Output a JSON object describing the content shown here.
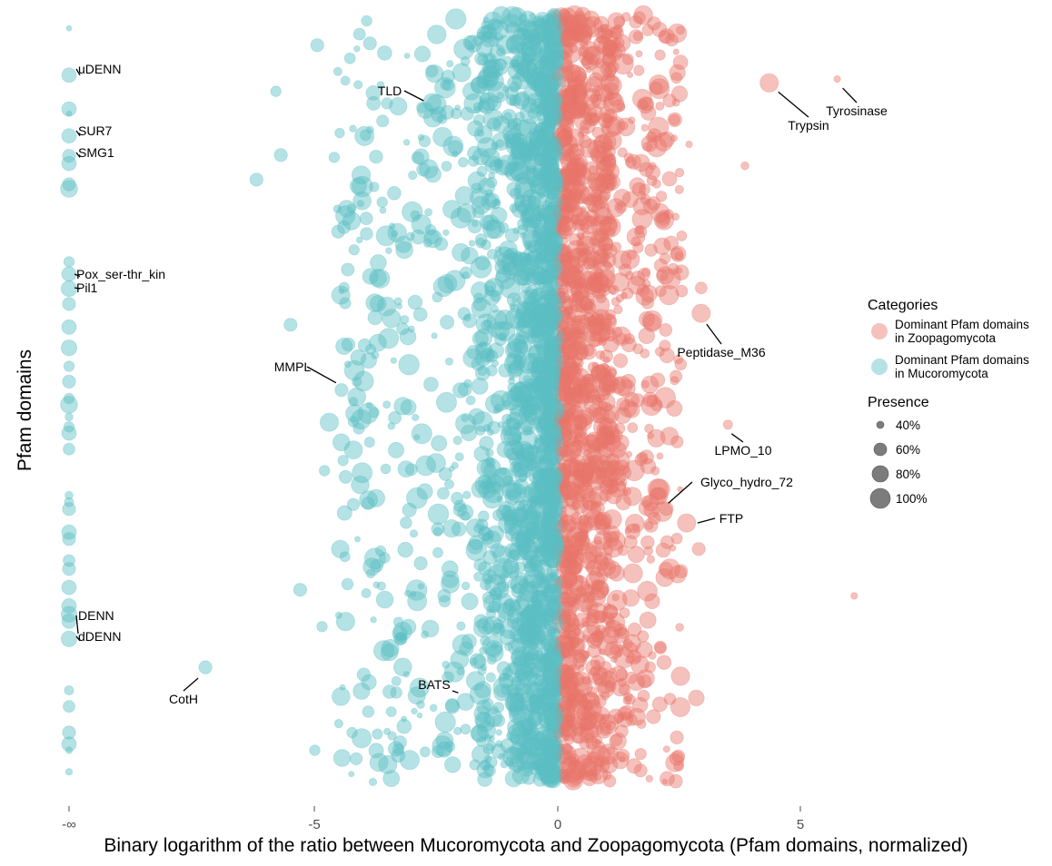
{
  "chart_data": {
    "type": "scatter",
    "title": "",
    "xlabel": "Binary logarithm of the ratio between Mucoromycota and Zoopagomycota (Pfam domains, normalized)",
    "ylabel": "Pfam domains",
    "x_ticks": [
      {
        "value": "-inf",
        "label": "-∞"
      },
      {
        "value": -5,
        "label": "-5"
      },
      {
        "value": 0,
        "label": "0"
      },
      {
        "value": 5,
        "label": "5"
      }
    ],
    "xlim": [
      -8.2,
      9.8
    ],
    "ylim": [
      0,
      1
    ],
    "y_note": "y is the normalized rank of the Pfam domain (0 = top, 1 = bottom); no y tick labels shown",
    "grid": false,
    "colors": {
      "zoopagomycota": "#E8756A",
      "mucoromycota": "#5BBEC4"
    },
    "legend": {
      "placement": "right",
      "categories_title": "Categories",
      "categories": [
        {
          "key": "zoopagomycota",
          "line1": "Dominant Pfam domains",
          "line2": "in Zoopagomycota"
        },
        {
          "key": "mucoromycota",
          "line1": "Dominant Pfam domains",
          "line2": "in Mucoromycota"
        }
      ],
      "presence_title": "Presence",
      "presence": [
        {
          "value": 0.4,
          "label": "40%"
        },
        {
          "value": 0.6,
          "label": "60%"
        },
        {
          "value": 0.8,
          "label": "80%"
        },
        {
          "value": 1.0,
          "label": "100%"
        }
      ]
    },
    "annotations": [
      {
        "label": "uDENN",
        "x": "-inf",
        "y": 0.079,
        "presence": 0.75,
        "category": "mucoromycota"
      },
      {
        "label": "SUR7",
        "x": "-inf",
        "y": 0.158,
        "presence": 0.75,
        "category": "mucoromycota"
      },
      {
        "label": "SMG1",
        "x": "-inf",
        "y": 0.186,
        "presence": 0.75,
        "category": "mucoromycota"
      },
      {
        "label": "Pox_ser-thr_kin",
        "x": "-inf",
        "y": 0.341,
        "presence": 0.75,
        "category": "mucoromycota"
      },
      {
        "label": "Pil1",
        "x": "-inf",
        "y": 0.357,
        "presence": 0.8,
        "category": "mucoromycota"
      },
      {
        "label": "DENN",
        "x": "-inf",
        "y": 0.811,
        "presence": 0.8,
        "category": "mucoromycota"
      },
      {
        "label": "dDENN",
        "x": "-inf",
        "y": 0.813,
        "presence": 0.75,
        "category": "mucoromycota"
      },
      {
        "label": "CotH",
        "x": -7.25,
        "y": 0.85,
        "presence": 0.7,
        "category": "mucoromycota"
      },
      {
        "label": "TLD",
        "x": -2.5,
        "y": 0.117,
        "presence": 0.95,
        "category": "mucoromycota"
      },
      {
        "label": "MMPL",
        "x": -4.45,
        "y": 0.489,
        "presence": 0.7,
        "category": "mucoromycota"
      },
      {
        "label": "BATS",
        "x": -1.9,
        "y": 0.895,
        "presence": 0.85,
        "category": "mucoromycota"
      },
      {
        "label": "Trypsin",
        "x": 4.35,
        "y": 0.089,
        "presence": 0.9,
        "category": "zoopagomycota"
      },
      {
        "label": "Tyrosinase",
        "x": 5.75,
        "y": 0.084,
        "presence": 0.45,
        "category": "zoopagomycota"
      },
      {
        "label": "Peptidase_M36",
        "x": 2.95,
        "y": 0.389,
        "presence": 0.9,
        "category": "zoopagomycota"
      },
      {
        "label": "LPMO_10",
        "x": 3.5,
        "y": 0.534,
        "presence": 0.55,
        "category": "zoopagomycota"
      },
      {
        "label": "Glyco_hydro_72",
        "x": 2.05,
        "y": 0.627,
        "presence": 0.85,
        "category": "zoopagomycota"
      },
      {
        "label": "FTP",
        "x": 2.65,
        "y": 0.662,
        "presence": 0.9,
        "category": "zoopagomycota"
      }
    ],
    "neg_inf_points": [
      {
        "y": 0.018,
        "presence": 0.4
      },
      {
        "y": 0.079,
        "presence": 0.75
      },
      {
        "y": 0.123,
        "presence": 0.75
      },
      {
        "y": 0.129,
        "presence": 0.4
      },
      {
        "y": 0.158,
        "presence": 0.75
      },
      {
        "y": 0.184,
        "presence": 0.7
      },
      {
        "y": 0.194,
        "presence": 0.75
      },
      {
        "y": 0.221,
        "presence": 0.7
      },
      {
        "y": 0.227,
        "presence": 0.85
      },
      {
        "y": 0.322,
        "presence": 0.6
      },
      {
        "y": 0.338,
        "presence": 0.75
      },
      {
        "y": 0.357,
        "presence": 0.8
      },
      {
        "y": 0.377,
        "presence": 0.7
      },
      {
        "y": 0.407,
        "presence": 0.75
      },
      {
        "y": 0.434,
        "presence": 0.8
      },
      {
        "y": 0.458,
        "presence": 0.6
      },
      {
        "y": 0.478,
        "presence": 0.7
      },
      {
        "y": 0.5,
        "presence": 0.6
      },
      {
        "y": 0.508,
        "presence": 0.85
      },
      {
        "y": 0.524,
        "presence": 0.5
      },
      {
        "y": 0.537,
        "presence": 0.6
      },
      {
        "y": 0.545,
        "presence": 0.75
      },
      {
        "y": 0.566,
        "presence": 0.65
      },
      {
        "y": 0.626,
        "presence": 0.5
      },
      {
        "y": 0.635,
        "presence": 0.55
      },
      {
        "y": 0.644,
        "presence": 0.7
      },
      {
        "y": 0.674,
        "presence": 0.75
      },
      {
        "y": 0.683,
        "presence": 0.7
      },
      {
        "y": 0.711,
        "presence": 0.65
      },
      {
        "y": 0.722,
        "presence": 0.7
      },
      {
        "y": 0.746,
        "presence": 0.75
      },
      {
        "y": 0.77,
        "presence": 0.75
      },
      {
        "y": 0.781,
        "presence": 0.8
      },
      {
        "y": 0.79,
        "presence": 0.75
      },
      {
        "y": 0.813,
        "presence": 0.8
      },
      {
        "y": 0.88,
        "presence": 0.55
      },
      {
        "y": 0.901,
        "presence": 0.65
      },
      {
        "y": 0.935,
        "presence": 0.7
      },
      {
        "y": 0.95,
        "presence": 0.75
      },
      {
        "y": 0.958,
        "presence": 0.45
      },
      {
        "y": 0.986,
        "presence": 0.45
      }
    ],
    "outlier_points": [
      {
        "x": 6.1,
        "y": 0.757,
        "presence": 0.45,
        "category": "zoopagomycota"
      },
      {
        "x": 3.85,
        "y": 0.197,
        "presence": 0.5,
        "category": "zoopagomycota"
      },
      {
        "x": 2.95,
        "y": 0.356,
        "presence": 0.65,
        "category": "zoopagomycota"
      },
      {
        "x": 2.55,
        "y": 0.36,
        "presence": 0.65,
        "category": "zoopagomycota"
      },
      {
        "x": 2.3,
        "y": 0.112,
        "presence": 0.7,
        "category": "zoopagomycota"
      },
      {
        "x": 2.3,
        "y": 0.214,
        "presence": 0.75,
        "category": "zoopagomycota"
      },
      {
        "x": 2.85,
        "y": 0.89,
        "presence": 0.8,
        "category": "zoopagomycota"
      },
      {
        "x": 2.25,
        "y": 0.995,
        "presence": 0.75,
        "category": "zoopagomycota"
      },
      {
        "x": 2.9,
        "y": 0.696,
        "presence": 0.7,
        "category": "zoopagomycota"
      },
      {
        "x": 2.25,
        "y": 0.687,
        "presence": 0.7,
        "category": "zoopagomycota"
      },
      {
        "x": 2.7,
        "y": 0.169,
        "presence": 0.45,
        "category": "zoopagomycota"
      },
      {
        "x": 2.1,
        "y": 0.439,
        "presence": 0.55,
        "category": "zoopagomycota"
      },
      {
        "x": -6.2,
        "y": 0.215,
        "presence": 0.7,
        "category": "mucoromycota"
      },
      {
        "x": -5.7,
        "y": 0.183,
        "presence": 0.7,
        "category": "mucoromycota"
      },
      {
        "x": -5.8,
        "y": 0.1,
        "presence": 0.6,
        "category": "mucoromycota"
      },
      {
        "x": -5.5,
        "y": 0.404,
        "presence": 0.7,
        "category": "mucoromycota"
      },
      {
        "x": -5.3,
        "y": 0.749,
        "presence": 0.7,
        "category": "mucoromycota"
      },
      {
        "x": -5.0,
        "y": 0.958,
        "presence": 0.6,
        "category": "mucoromycota"
      },
      {
        "x": -4.95,
        "y": 0.04,
        "presence": 0.7,
        "category": "mucoromycota"
      },
      {
        "x": -4.6,
        "y": 0.186,
        "presence": 0.6,
        "category": "mucoromycota"
      },
      {
        "x": -4.4,
        "y": 0.277,
        "presence": 0.7,
        "category": "mucoromycota"
      },
      {
        "x": -4.7,
        "y": 0.531,
        "presence": 0.9,
        "category": "mucoromycota"
      },
      {
        "x": -4.85,
        "y": 0.797,
        "presence": 0.6,
        "category": "mucoromycota"
      },
      {
        "x": -4.8,
        "y": 0.594,
        "presence": 0.6,
        "category": "mucoromycota"
      }
    ],
    "dense_band": {
      "description": "Hundreds of overlapping points concentrated near x=0; Mucoromycota points in x<0 (mostly -2 to 0, sparse to -4.5), Zoopagomycota points in x>0 (mostly 0 to 1.5, sparse to 2.5); presence 40%-100%",
      "mucoromycota_core_range": [
        -1.5,
        0
      ],
      "mucoromycota_spread_range": [
        -4.5,
        0
      ],
      "zoopagomycota_core_range": [
        0,
        1.0
      ],
      "zoopagomycota_spread_range": [
        0,
        2.5
      ]
    }
  }
}
